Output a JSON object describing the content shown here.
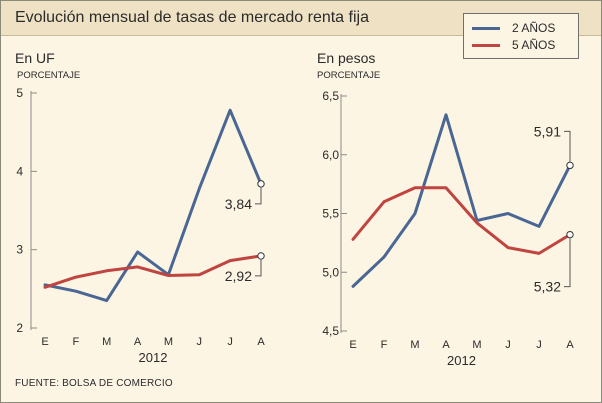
{
  "title": "Evolución mensual de tasas de mercado renta fija",
  "source": "FUENTE: BOLSA DE COMERCIO",
  "colors": {
    "series_2y": "#4a6794",
    "series_5y": "#c0443f",
    "axis": "#8a8a8a",
    "frame": "#8a8a7a",
    "background": "#fcf5e4",
    "header": "#efe2c4"
  },
  "legend": [
    {
      "name": "2 AÑOS",
      "color": "#4a6794"
    },
    {
      "name": "5 AÑOS",
      "color": "#c0443f"
    }
  ],
  "chart_data": [
    {
      "type": "line",
      "title": "En UF",
      "ylabel": "PORCENTAJE",
      "xlabel": "2012",
      "categories": [
        "E",
        "F",
        "M",
        "A",
        "M",
        "J",
        "J",
        "A"
      ],
      "ylim": [
        2,
        5
      ],
      "yticks": [
        "5",
        "4",
        "3",
        "2"
      ],
      "series": [
        {
          "name": "2 AÑOS",
          "values": [
            2.55,
            2.47,
            2.35,
            2.97,
            2.68,
            3.78,
            4.78,
            3.84
          ]
        },
        {
          "name": "5 AÑOS",
          "values": [
            2.52,
            2.65,
            2.73,
            2.78,
            2.67,
            2.68,
            2.86,
            2.92
          ]
        }
      ],
      "annotations": [
        {
          "series": "2 AÑOS",
          "index": 7,
          "label": "3,84"
        },
        {
          "series": "5 AÑOS",
          "index": 7,
          "label": "2,92"
        }
      ]
    },
    {
      "type": "line",
      "title": "En pesos",
      "ylabel": "PORCENTAJE",
      "xlabel": "2012",
      "categories": [
        "E",
        "F",
        "M",
        "A",
        "M",
        "J",
        "J",
        "A"
      ],
      "ylim": [
        4.5,
        6.5
      ],
      "yticks": [
        "6,5",
        "6,0",
        "5,5",
        "5,0",
        "4,5"
      ],
      "series": [
        {
          "name": "2 AÑOS",
          "values": [
            4.88,
            5.13,
            5.5,
            6.34,
            5.44,
            5.5,
            5.39,
            5.91
          ]
        },
        {
          "name": "5 AÑOS",
          "values": [
            5.28,
            5.6,
            5.72,
            5.72,
            5.42,
            5.21,
            5.16,
            5.32
          ]
        }
      ],
      "annotations": [
        {
          "series": "2 AÑOS",
          "index": 7,
          "label": "5,91"
        },
        {
          "series": "5 AÑOS",
          "index": 7,
          "label": "5,32"
        }
      ]
    }
  ]
}
